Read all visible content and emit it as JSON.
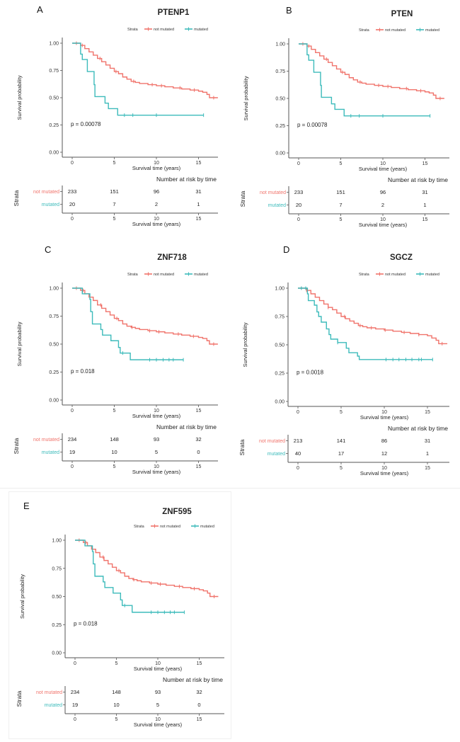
{
  "colors": {
    "not_mutated": "#F0736B",
    "mutated": "#3DBBBB",
    "axis": "#555555",
    "text": "#222222"
  },
  "chart_data": [
    {
      "panel": "A",
      "type": "line",
      "title": "PTENP1",
      "xlabel": "Survival time (years)",
      "ylabel": "Survival probability",
      "xlim": [
        0,
        17.3
      ],
      "ylim": [
        0,
        1
      ],
      "xticks": [
        "0",
        "5",
        "10",
        "15"
      ],
      "xtick_values": [
        0,
        5,
        10,
        15
      ],
      "yticks": [
        "0.00",
        "0.25",
        "0.50",
        "0.75",
        "1.00"
      ],
      "ytick_values": [
        0,
        0.25,
        0.5,
        0.75,
        1
      ],
      "legend": {
        "title": "Strata",
        "entries": [
          "not mutated",
          "mutated"
        ],
        "position": "top-right"
      },
      "pvalue": "p = 0.00078",
      "series": [
        {
          "name": "not mutated",
          "x": [
            0,
            0.8,
            1,
            1.5,
            2,
            2.5,
            3,
            3.5,
            4,
            4.5,
            5,
            5.5,
            6,
            6.5,
            7,
            7.5,
            8,
            9,
            10,
            11,
            12,
            13,
            14,
            15,
            15.5,
            16,
            16.3,
            17.3
          ],
          "y": [
            1,
            1,
            0.98,
            0.95,
            0.92,
            0.89,
            0.86,
            0.83,
            0.8,
            0.77,
            0.74,
            0.72,
            0.69,
            0.67,
            0.65,
            0.64,
            0.63,
            0.62,
            0.61,
            0.6,
            0.59,
            0.58,
            0.57,
            0.56,
            0.55,
            0.53,
            0.5,
            0.5
          ],
          "censor": [
            0.5,
            1.2,
            3.3,
            5.2,
            7.3,
            9.5,
            10.6,
            12.8,
            14.5,
            16.8
          ]
        },
        {
          "name": "mutated",
          "x": [
            0,
            1,
            1.2,
            1.8,
            2.6,
            2.7,
            3.9,
            4.3,
            5.4,
            15.6
          ],
          "y": [
            1,
            0.9,
            0.85,
            0.74,
            0.62,
            0.51,
            0.45,
            0.4,
            0.34,
            0.34
          ],
          "censor": [
            6.2,
            7.2,
            10,
            15.6
          ]
        }
      ],
      "risk_table": {
        "title": "Number at risk by time",
        "ylabel": "Strata",
        "rows": [
          {
            "label": "not mutated",
            "values": [
              "233",
              "151",
              "96",
              "31"
            ]
          },
          {
            "label": "mutated",
            "values": [
              "20",
              "7",
              "2",
              "1"
            ]
          }
        ],
        "xticks": [
          "0",
          "5",
          "10",
          "15"
        ],
        "xlabel": "Survival time (years)"
      }
    },
    {
      "panel": "B",
      "type": "line",
      "title": "PTEN",
      "xlabel": "Survival time (years)",
      "ylabel": "Survival probability",
      "xlim": [
        0,
        17.3
      ],
      "ylim": [
        0,
        1
      ],
      "xticks": [
        "0",
        "5",
        "10",
        "15"
      ],
      "xtick_values": [
        0,
        5,
        10,
        15
      ],
      "yticks": [
        "0.00",
        "0.25",
        "0.50",
        "0.75",
        "1.00"
      ],
      "ytick_values": [
        0,
        0.25,
        0.5,
        0.75,
        1
      ],
      "legend": {
        "title": "Strata",
        "entries": [
          "not mutated",
          "mutated"
        ],
        "position": "top-right"
      },
      "pvalue": "p = 0.00078",
      "series": [
        {
          "name": "not mutated",
          "x": [
            0,
            0.8,
            1,
            1.5,
            2,
            2.5,
            3,
            3.5,
            4,
            4.5,
            5,
            5.5,
            6,
            6.5,
            7,
            7.5,
            8,
            9,
            10,
            11,
            12,
            13,
            14,
            15,
            15.5,
            16,
            16.3,
            17.3
          ],
          "y": [
            1,
            1,
            0.98,
            0.95,
            0.92,
            0.89,
            0.86,
            0.83,
            0.8,
            0.77,
            0.74,
            0.72,
            0.69,
            0.67,
            0.65,
            0.64,
            0.63,
            0.62,
            0.61,
            0.6,
            0.59,
            0.58,
            0.57,
            0.56,
            0.55,
            0.53,
            0.5,
            0.5
          ],
          "censor": [
            0.5,
            1.2,
            3.3,
            5.2,
            7.3,
            9.5,
            10.6,
            12.8,
            14.5,
            16.8
          ]
        },
        {
          "name": "mutated",
          "x": [
            0,
            1,
            1.2,
            1.8,
            2.6,
            2.7,
            3.9,
            4.3,
            5.4,
            15.6
          ],
          "y": [
            1,
            0.9,
            0.85,
            0.74,
            0.62,
            0.51,
            0.45,
            0.4,
            0.34,
            0.34
          ],
          "censor": [
            6.2,
            7.2,
            10,
            15.6
          ]
        }
      ],
      "risk_table": {
        "title": "Number at risk by time",
        "ylabel": "Strata",
        "rows": [
          {
            "label": "not mutated",
            "values": [
              "233",
              "151",
              "96",
              "31"
            ]
          },
          {
            "label": "mutated",
            "values": [
              "20",
              "7",
              "2",
              "1"
            ]
          }
        ],
        "xticks": [
          "0",
          "5",
          "10",
          "15"
        ],
        "xlabel": "Survival time (years)"
      }
    },
    {
      "panel": "C",
      "type": "line",
      "title": "ZNF718",
      "xlabel": "Survival time (years)",
      "ylabel": "Survival probability",
      "xlim": [
        0,
        17.3
      ],
      "ylim": [
        0,
        1
      ],
      "xticks": [
        "0",
        "5",
        "10",
        "15"
      ],
      "xtick_values": [
        0,
        5,
        10,
        15
      ],
      "yticks": [
        "0.00",
        "0.25",
        "0.50",
        "0.75",
        "1.00"
      ],
      "ytick_values": [
        0,
        0.25,
        0.5,
        0.75,
        1
      ],
      "legend": {
        "title": "Strata",
        "entries": [
          "not mutated",
          "mutated"
        ],
        "position": "top-right"
      },
      "pvalue": "p = 0.018",
      "series": [
        {
          "name": "not mutated",
          "x": [
            0,
            0.8,
            1,
            1.5,
            2,
            2.5,
            3,
            3.5,
            4,
            4.5,
            5,
            5.5,
            6,
            6.5,
            7,
            7.5,
            8,
            9,
            10,
            11,
            12,
            13,
            14,
            15,
            15.5,
            16,
            16.3,
            17.3
          ],
          "y": [
            1,
            1,
            0.98,
            0.95,
            0.92,
            0.89,
            0.85,
            0.82,
            0.79,
            0.76,
            0.73,
            0.71,
            0.68,
            0.66,
            0.65,
            0.64,
            0.63,
            0.62,
            0.61,
            0.6,
            0.59,
            0.58,
            0.57,
            0.56,
            0.55,
            0.53,
            0.5,
            0.5
          ],
          "censor": [
            0.5,
            1.3,
            3.4,
            5.3,
            7.1,
            9.2,
            10.3,
            12.6,
            14.4,
            16.8
          ]
        },
        {
          "name": "mutated",
          "x": [
            0,
            1.2,
            1.5,
            2.1,
            2.2,
            2.4,
            3.4,
            3.6,
            4.6,
            5.5,
            5.7,
            6.9,
            13.2
          ],
          "y": [
            1,
            0.95,
            0.95,
            0.9,
            0.79,
            0.68,
            0.63,
            0.58,
            0.53,
            0.47,
            0.42,
            0.36,
            0.36
          ],
          "censor": [
            6,
            9.2,
            10,
            10.8,
            11.5,
            12,
            13.2
          ]
        }
      ],
      "risk_table": {
        "title": "Number at risk by time",
        "ylabel": "Strata",
        "rows": [
          {
            "label": "not mutated",
            "values": [
              "234",
              "148",
              "93",
              "32"
            ]
          },
          {
            "label": "mutated",
            "values": [
              "19",
              "10",
              "5",
              "0"
            ]
          }
        ],
        "xticks": [
          "0",
          "5",
          "10",
          "15"
        ],
        "xlabel": "Survival time (years)"
      }
    },
    {
      "panel": "D",
      "type": "line",
      "title": "SGCZ",
      "xlabel": "Survival time (years)",
      "ylabel": "Survival probability",
      "xlim": [
        0,
        17.3
      ],
      "ylim": [
        0,
        1
      ],
      "xticks": [
        "0",
        "5",
        "10",
        "15"
      ],
      "xtick_values": [
        0,
        5,
        10,
        15
      ],
      "yticks": [
        "0.00",
        "0.25",
        "0.50",
        "0.75",
        "1.00"
      ],
      "ytick_values": [
        0,
        0.25,
        0.5,
        0.75,
        1
      ],
      "legend": {
        "title": "Strata",
        "entries": [
          "not mutated",
          "mutated"
        ],
        "position": "top-right"
      },
      "pvalue": "p = 0.0018",
      "series": [
        {
          "name": "not mutated",
          "x": [
            0,
            0.8,
            1,
            1.5,
            2,
            2.5,
            3,
            3.5,
            4,
            4.5,
            5,
            5.5,
            6,
            6.5,
            7,
            7.5,
            8,
            9,
            10,
            11,
            12,
            13,
            14,
            15,
            15.5,
            16,
            16.3,
            17.3
          ],
          "y": [
            1,
            1,
            0.98,
            0.95,
            0.92,
            0.89,
            0.86,
            0.83,
            0.81,
            0.78,
            0.75,
            0.73,
            0.71,
            0.69,
            0.67,
            0.66,
            0.65,
            0.64,
            0.63,
            0.62,
            0.61,
            0.6,
            0.59,
            0.58,
            0.56,
            0.54,
            0.51,
            0.51
          ],
          "censor": [
            0.4,
            1,
            3.5,
            5.4,
            7.2,
            8.5,
            10.1,
            12.3,
            14,
            16.7
          ]
        },
        {
          "name": "mutated",
          "x": [
            0,
            1.1,
            1.2,
            1.9,
            2.2,
            2.4,
            2.7,
            3.3,
            3.6,
            3.8,
            4.6,
            5.6,
            5.9,
            6.9,
            7.1,
            15.6
          ],
          "y": [
            1,
            0.95,
            0.89,
            0.85,
            0.79,
            0.75,
            0.7,
            0.64,
            0.59,
            0.55,
            0.52,
            0.47,
            0.43,
            0.4,
            0.37,
            0.37
          ],
          "censor": [
            0.4,
            0.9,
            4.6,
            10.2,
            11,
            11.7,
            12.5,
            13.2,
            14,
            14.3,
            15.6
          ]
        }
      ],
      "risk_table": {
        "title": "Number at risk by time",
        "ylabel": "Strata",
        "rows": [
          {
            "label": "not mutated",
            "values": [
              "213",
              "141",
              "86",
              "31"
            ]
          },
          {
            "label": "mutated",
            "values": [
              "40",
              "17",
              "12",
              "1"
            ]
          }
        ],
        "xticks": [
          "0",
          "5",
          "10",
          "15"
        ],
        "xlabel": "Survival time (years)"
      }
    },
    {
      "panel": "E",
      "type": "line",
      "title": "ZNF595",
      "xlabel": "Survival time (years)",
      "ylabel": "Survival probability",
      "xlim": [
        0,
        17.3
      ],
      "ylim": [
        0,
        1
      ],
      "xticks": [
        "0",
        "5",
        "10",
        "15"
      ],
      "xtick_values": [
        0,
        5,
        10,
        15
      ],
      "yticks": [
        "0.00",
        "0.25",
        "0.50",
        "0.75",
        "1.00"
      ],
      "ytick_values": [
        0,
        0.25,
        0.5,
        0.75,
        1
      ],
      "legend": {
        "title": "Strata",
        "entries": [
          "not mutated",
          "mutated"
        ],
        "position": "top-right"
      },
      "pvalue": "p = 0.018",
      "series": [
        {
          "name": "not mutated",
          "x": [
            0,
            0.8,
            1,
            1.5,
            2,
            2.5,
            3,
            3.5,
            4,
            4.5,
            5,
            5.5,
            6,
            6.5,
            7,
            7.5,
            8,
            9,
            10,
            11,
            12,
            13,
            14,
            15,
            15.5,
            16,
            16.3,
            17.3
          ],
          "y": [
            1,
            1,
            0.98,
            0.95,
            0.92,
            0.89,
            0.85,
            0.82,
            0.79,
            0.76,
            0.73,
            0.71,
            0.68,
            0.66,
            0.65,
            0.64,
            0.63,
            0.62,
            0.61,
            0.6,
            0.59,
            0.58,
            0.57,
            0.56,
            0.55,
            0.53,
            0.5,
            0.5
          ],
          "censor": [
            0.5,
            1.3,
            3.4,
            5.3,
            7.1,
            9.2,
            10.3,
            12.6,
            14.4,
            16.8
          ]
        },
        {
          "name": "mutated",
          "x": [
            0,
            1.2,
            1.5,
            2.1,
            2.2,
            2.4,
            3.4,
            3.6,
            4.6,
            5.5,
            5.7,
            6.9,
            13.2
          ],
          "y": [
            1,
            0.95,
            0.95,
            0.9,
            0.79,
            0.68,
            0.63,
            0.58,
            0.53,
            0.47,
            0.42,
            0.36,
            0.36
          ],
          "censor": [
            6,
            9.2,
            10,
            10.8,
            11.5,
            12,
            13.2
          ]
        }
      ],
      "risk_table": {
        "title": "Number at risk by time",
        "ylabel": "Strata",
        "rows": [
          {
            "label": "not mutated",
            "values": [
              "234",
              "148",
              "93",
              "32"
            ]
          },
          {
            "label": "mutated",
            "values": [
              "19",
              "10",
              "5",
              "0"
            ]
          }
        ],
        "xticks": [
          "0",
          "5",
          "10",
          "15"
        ],
        "xlabel": "Survival time (years)"
      }
    }
  ]
}
